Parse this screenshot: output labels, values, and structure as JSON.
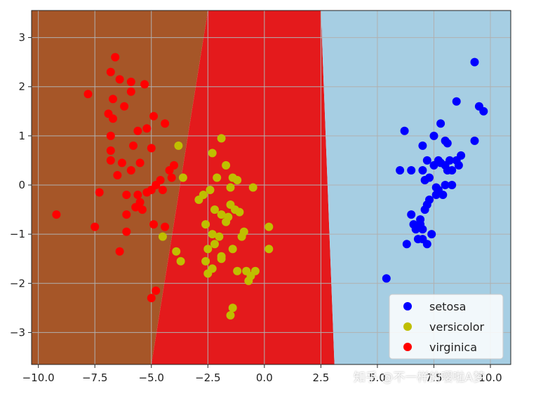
{
  "chart_data": {
    "type": "scatter",
    "title": "",
    "xlabel": "",
    "ylabel": "",
    "xlim": [
      -10.3,
      10.9
    ],
    "ylim": [
      -3.65,
      3.55
    ],
    "xticks": [
      -10.0,
      -7.5,
      -5.0,
      -2.5,
      0.0,
      2.5,
      5.0,
      7.5,
      10.0
    ],
    "xtick_labels": [
      "−10.0",
      "−7.5",
      "−5.0",
      "−2.5",
      "0.0",
      "2.5",
      "5.0",
      "7.5",
      "10.0"
    ],
    "yticks": [
      -3,
      -2,
      -1,
      0,
      1,
      2,
      3
    ],
    "ytick_labels": [
      "−3",
      "−2",
      "−1",
      "0",
      "1",
      "2",
      "3"
    ],
    "grid": true,
    "legend_position": "lower-right",
    "decision_regions": [
      {
        "class": "virginica",
        "color": "#a65628",
        "polygon": [
          [
            -10.3,
            3.55
          ],
          [
            -2.5,
            3.55
          ],
          [
            -5.0,
            -3.65
          ],
          [
            -10.3,
            -3.65
          ]
        ]
      },
      {
        "class": "versicolor",
        "color": "#e41a1c",
        "polygon": [
          [
            -2.5,
            3.55
          ],
          [
            2.5,
            3.55
          ],
          [
            3.1,
            -3.65
          ],
          [
            -5.0,
            -3.65
          ]
        ]
      },
      {
        "class": "setosa",
        "color": "#a6cee3",
        "polygon": [
          [
            2.5,
            3.55
          ],
          [
            10.9,
            3.55
          ],
          [
            10.9,
            -3.65
          ],
          [
            3.1,
            -3.65
          ]
        ]
      }
    ],
    "series": [
      {
        "name": "setosa",
        "color": "#0000ff",
        "points": [
          [
            5.4,
            -1.9
          ],
          [
            6.2,
            1.1
          ],
          [
            6.0,
            0.3
          ],
          [
            6.5,
            0.3
          ],
          [
            6.6,
            -0.8
          ],
          [
            6.7,
            -0.9
          ],
          [
            6.5,
            -0.6
          ],
          [
            6.8,
            -1.1
          ],
          [
            6.3,
            -1.2
          ],
          [
            7.0,
            -0.9
          ],
          [
            6.9,
            -0.7
          ],
          [
            7.1,
            -0.5
          ],
          [
            7.2,
            -0.4
          ],
          [
            7.3,
            -0.3
          ],
          [
            7.0,
            -1.1
          ],
          [
            7.2,
            -1.2
          ],
          [
            7.4,
            -1.0
          ],
          [
            7.6,
            -0.2
          ],
          [
            7.7,
            -0.1
          ],
          [
            7.9,
            -0.2
          ],
          [
            8.0,
            0.0
          ],
          [
            8.3,
            0.0
          ],
          [
            7.0,
            0.8
          ],
          [
            7.2,
            0.5
          ],
          [
            7.5,
            0.4
          ],
          [
            7.7,
            0.5
          ],
          [
            7.8,
            0.45
          ],
          [
            8.0,
            0.4
          ],
          [
            8.1,
            0.3
          ],
          [
            8.2,
            0.5
          ],
          [
            8.5,
            0.5
          ],
          [
            8.6,
            0.4
          ],
          [
            8.7,
            0.6
          ],
          [
            7.5,
            1.0
          ],
          [
            7.8,
            1.25
          ],
          [
            8.0,
            0.9
          ],
          [
            8.1,
            0.85
          ],
          [
            8.5,
            1.7
          ],
          [
            9.3,
            0.9
          ],
          [
            9.5,
            1.6
          ],
          [
            9.7,
            1.5
          ],
          [
            9.3,
            2.5
          ],
          [
            7.1,
            0.1
          ],
          [
            7.3,
            0.15
          ],
          [
            7.6,
            -0.05
          ],
          [
            6.9,
            -0.8
          ],
          [
            7.0,
            0.3
          ],
          [
            8.3,
            0.3
          ]
        ]
      },
      {
        "name": "versicolor",
        "color": "#bfbf00",
        "points": [
          [
            -3.8,
            0.8
          ],
          [
            -3.6,
            0.15
          ],
          [
            -1.9,
            0.95
          ],
          [
            -2.3,
            0.65
          ],
          [
            -1.7,
            0.4
          ],
          [
            -1.4,
            0.15
          ],
          [
            -1.2,
            0.1
          ],
          [
            -1.5,
            -0.05
          ],
          [
            -0.5,
            -0.05
          ],
          [
            -2.1,
            0.15
          ],
          [
            -2.4,
            -0.1
          ],
          [
            -2.7,
            -0.2
          ],
          [
            -2.9,
            -0.3
          ],
          [
            -2.2,
            -0.5
          ],
          [
            -1.9,
            -0.6
          ],
          [
            -1.6,
            -0.65
          ],
          [
            -1.3,
            -0.5
          ],
          [
            -1.1,
            -0.55
          ],
          [
            -1.5,
            -0.4
          ],
          [
            -2.6,
            -0.8
          ],
          [
            -2.3,
            -1.0
          ],
          [
            -2.0,
            -1.05
          ],
          [
            -1.7,
            -0.75
          ],
          [
            -0.9,
            -0.95
          ],
          [
            -2.5,
            -1.3
          ],
          [
            -2.2,
            -1.2
          ],
          [
            -1.9,
            -1.45
          ],
          [
            -1.4,
            -1.3
          ],
          [
            0.2,
            -0.85
          ],
          [
            0.2,
            -1.3
          ],
          [
            -4.5,
            -1.05
          ],
          [
            -3.9,
            -1.35
          ],
          [
            -3.7,
            -1.55
          ],
          [
            -2.6,
            -1.55
          ],
          [
            -2.3,
            -1.7
          ],
          [
            -1.9,
            -1.5
          ],
          [
            -1.2,
            -1.75
          ],
          [
            -0.8,
            -1.75
          ],
          [
            -0.6,
            -1.85
          ],
          [
            -0.4,
            -1.75
          ],
          [
            -1.4,
            -2.5
          ],
          [
            -1.5,
            -2.65
          ],
          [
            -2.5,
            -1.8
          ],
          [
            -0.7,
            -1.95
          ],
          [
            -1.0,
            -1.05
          ]
        ]
      },
      {
        "name": "virginica",
        "color": "#ff0000",
        "points": [
          [
            -9.2,
            -0.6
          ],
          [
            -7.8,
            1.85
          ],
          [
            -6.6,
            2.6
          ],
          [
            -6.8,
            2.3
          ],
          [
            -6.4,
            2.15
          ],
          [
            -5.9,
            2.1
          ],
          [
            -5.3,
            2.05
          ],
          [
            -6.7,
            1.75
          ],
          [
            -6.2,
            1.6
          ],
          [
            -5.9,
            1.9
          ],
          [
            -6.9,
            1.45
          ],
          [
            -6.7,
            1.35
          ],
          [
            -5.6,
            1.1
          ],
          [
            -5.2,
            1.15
          ],
          [
            -4.9,
            1.4
          ],
          [
            -4.4,
            1.25
          ],
          [
            -6.8,
            1.0
          ],
          [
            -5.8,
            0.8
          ],
          [
            -5.0,
            0.75
          ],
          [
            -6.8,
            0.7
          ],
          [
            -6.3,
            0.45
          ],
          [
            -6.8,
            0.5
          ],
          [
            -5.5,
            0.45
          ],
          [
            -4.0,
            0.4
          ],
          [
            -4.2,
            0.3
          ],
          [
            -6.5,
            0.2
          ],
          [
            -5.9,
            0.3
          ],
          [
            -4.1,
            0.15
          ],
          [
            -4.6,
            0.1
          ],
          [
            -4.8,
            0.0
          ],
          [
            -7.3,
            -0.15
          ],
          [
            -6.1,
            -0.2
          ],
          [
            -5.6,
            -0.2
          ],
          [
            -5.0,
            -0.1
          ],
          [
            -4.5,
            -0.1
          ],
          [
            -5.5,
            -0.35
          ],
          [
            -5.4,
            -0.5
          ],
          [
            -5.7,
            -0.45
          ],
          [
            -6.1,
            -0.6
          ],
          [
            -4.9,
            -0.8
          ],
          [
            -4.4,
            -0.85
          ],
          [
            -7.5,
            -0.85
          ],
          [
            -6.1,
            -0.95
          ],
          [
            -6.4,
            -1.35
          ],
          [
            -4.8,
            -2.15
          ],
          [
            -5.0,
            -2.3
          ],
          [
            -5.2,
            -0.15
          ]
        ]
      }
    ]
  },
  "watermark": "知乎 @不一样的嘤啦A梦"
}
